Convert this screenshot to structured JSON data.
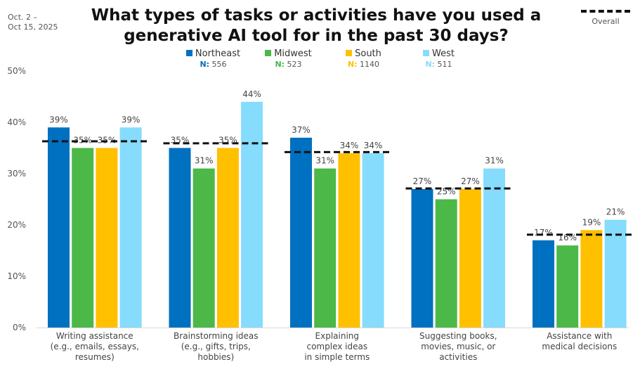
{
  "date_range": "Oct. 2 –\nOct 15, 2025",
  "overall_legend_label": "Overall",
  "chart_data": {
    "type": "bar",
    "title": "What types of tasks or activities have you used a generative AI tool for in the past 30 days?",
    "xlabel": "",
    "ylabel": "",
    "ylim": [
      0,
      50
    ],
    "yticks": [
      0,
      10,
      20,
      30,
      40,
      50
    ],
    "ytick_labels": [
      "0%",
      "10%",
      "20%",
      "30%",
      "40%",
      "50%"
    ],
    "grid": false,
    "legend_position": "top-center",
    "categories": [
      "Writing assistance (e.g., emails, essays, resumes)",
      "Brainstorming ideas (e.g., gifts, trips, hobbies)",
      "Explaining complex ideas in simple terms",
      "Suggesting books, movies, music, or activities",
      "Assistance with medical decisions"
    ],
    "category_lines": [
      [
        "Writing assistance",
        "(e.g., emails, essays,",
        "resumes)"
      ],
      [
        "Brainstorming ideas",
        "(e.g., gifts, trips,",
        "hobbies)"
      ],
      [
        "Explaining",
        "complex ideas",
        "in simple terms"
      ],
      [
        "Suggesting books,",
        "movies, music, or",
        "activities"
      ],
      [
        "Assistance with",
        "medical decisions"
      ]
    ],
    "series": [
      {
        "name": "Northeast",
        "n_label": "N:",
        "n_value": "556",
        "color": "#0070C0",
        "values": [
          39,
          35,
          37,
          27,
          17
        ],
        "labels": [
          "39%",
          "35%",
          "37%",
          "27%",
          "17%"
        ]
      },
      {
        "name": "Midwest",
        "n_label": "N:",
        "n_value": "523",
        "color": "#4CB848",
        "values": [
          35,
          31,
          31,
          25,
          16
        ],
        "labels": [
          "35%",
          "31%",
          "31%",
          "25%",
          "16%"
        ]
      },
      {
        "name": "South",
        "n_label": "N:",
        "n_value": "1140",
        "color": "#FFC000",
        "values": [
          35,
          35,
          34,
          27,
          19
        ],
        "labels": [
          "35%",
          "35%",
          "34%",
          "27%",
          "19%"
        ]
      },
      {
        "name": "West",
        "n_label": "N:",
        "n_value": "511",
        "color": "#85DCFC",
        "values": [
          39,
          44,
          34,
          31,
          21
        ],
        "labels": [
          "39%",
          "44%",
          "34%",
          "31%",
          "21%"
        ]
      }
    ],
    "overall": {
      "name": "Overall",
      "values": [
        36.3,
        35.9,
        34.2,
        27.1,
        18.1
      ],
      "style": "dashed",
      "color": "#111111"
    }
  }
}
